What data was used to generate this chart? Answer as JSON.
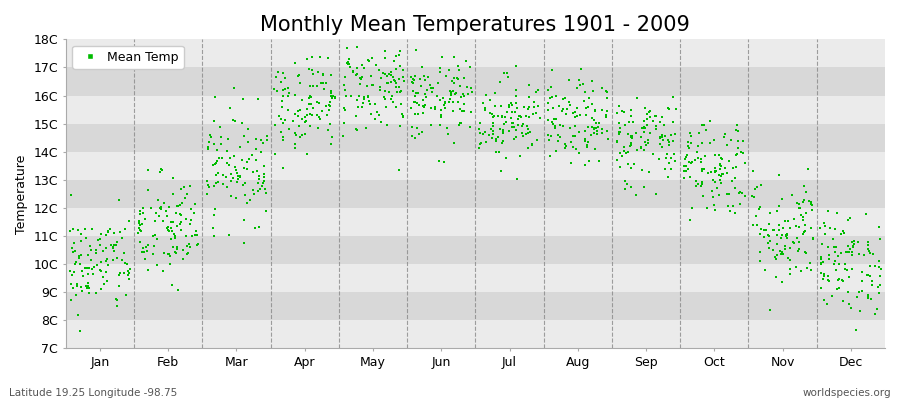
{
  "title": "Monthly Mean Temperatures 1901 - 2009",
  "ylabel": "Temperature",
  "xlabel_bottom_left": "Latitude 19.25 Longitude -98.75",
  "xlabel_bottom_right": "worldspecies.org",
  "legend_label": "Mean Temp",
  "dot_color": "#00bb00",
  "background_color": "#ebebeb",
  "stripe_color_light": "#ebebeb",
  "stripe_color_dark": "#d8d8d8",
  "ytick_labels": [
    "7C",
    "8C",
    "9C",
    "10C",
    "11C",
    "12C",
    "13C",
    "14C",
    "15C",
    "16C",
    "17C",
    "18C"
  ],
  "ytick_values": [
    7,
    8,
    9,
    10,
    11,
    12,
    13,
    14,
    15,
    16,
    17,
    18
  ],
  "months": [
    "Jan",
    "Feb",
    "Mar",
    "Apr",
    "May",
    "Jun",
    "Jul",
    "Aug",
    "Sep",
    "Oct",
    "Nov",
    "Dec"
  ],
  "monthly_means": [
    10.0,
    11.2,
    13.5,
    15.8,
    16.3,
    15.8,
    15.2,
    15.0,
    14.4,
    13.5,
    11.2,
    10.0
  ],
  "monthly_stds": [
    0.9,
    1.0,
    1.0,
    0.9,
    0.85,
    0.75,
    0.75,
    0.75,
    0.85,
    0.9,
    1.0,
    0.9
  ],
  "n_years": 109,
  "seed": 42,
  "ylim": [
    7,
    18
  ],
  "title_fontsize": 15,
  "axis_fontsize": 9,
  "legend_fontsize": 9,
  "marker_size": 3,
  "figsize": [
    9.0,
    4.0
  ],
  "dpi": 100
}
